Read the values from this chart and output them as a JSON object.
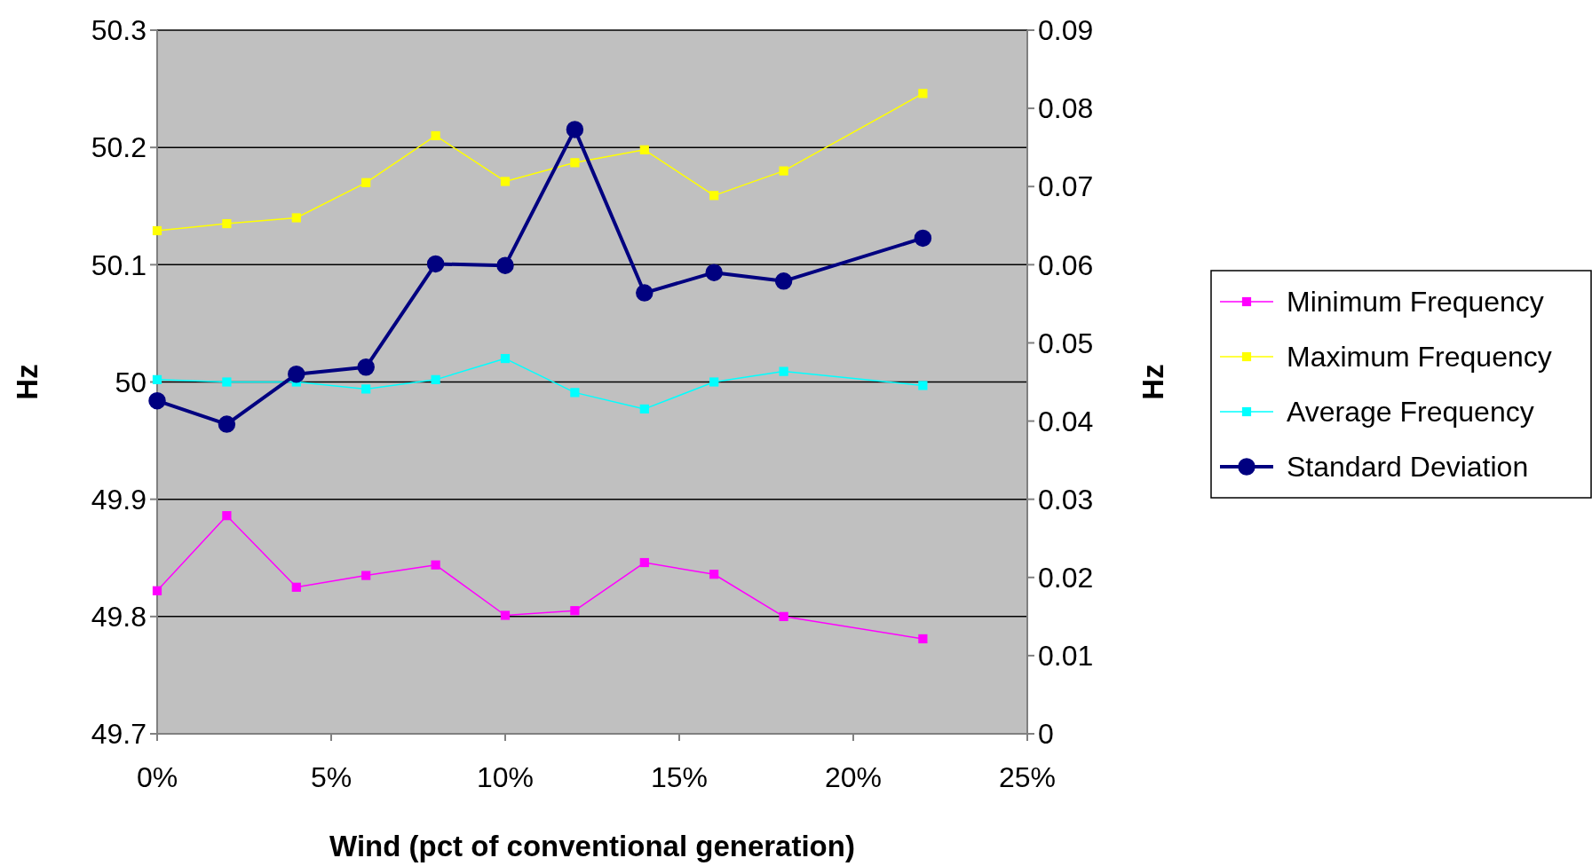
{
  "chart_data": {
    "type": "line",
    "xlabel": "Wind (pct of conventional generation)",
    "ylabel": "Hz",
    "y2label": "Hz",
    "x": [
      0,
      0.02,
      0.04,
      0.06,
      0.08,
      0.1,
      0.12,
      0.14,
      0.16,
      0.18,
      0.22
    ],
    "xlim": [
      0,
      0.25
    ],
    "xticks": [
      {
        "value": 0,
        "label": "0%"
      },
      {
        "value": 0.05,
        "label": "5%"
      },
      {
        "value": 0.1,
        "label": "10%"
      },
      {
        "value": 0.15,
        "label": "15%"
      },
      {
        "value": 0.2,
        "label": "20%"
      },
      {
        "value": 0.25,
        "label": "25%"
      }
    ],
    "ylim": [
      49.7,
      50.3
    ],
    "yticks": [
      49.7,
      49.8,
      49.9,
      50,
      50.1,
      50.2,
      50.3
    ],
    "y2lim": [
      0,
      0.09
    ],
    "y2ticks": [
      0,
      0.01,
      0.02,
      0.03,
      0.04,
      0.05,
      0.06,
      0.07,
      0.08,
      0.09
    ],
    "grid": "y",
    "legend": "right",
    "series": [
      {
        "name": "Minimum Frequency",
        "color": "#ff00ff",
        "marker": "square",
        "values": [
          49.822,
          49.886,
          49.825,
          49.835,
          49.844,
          49.801,
          49.805,
          49.846,
          49.836,
          49.8,
          49.781
        ]
      },
      {
        "name": "Maximum Frequency",
        "color": "#ffff00",
        "marker": "square",
        "values": [
          50.129,
          50.135,
          50.14,
          50.17,
          50.21,
          50.171,
          50.187,
          50.198,
          50.159,
          50.18,
          50.246
        ]
      },
      {
        "name": "Average Frequency",
        "color": "#00ffff",
        "marker": "square",
        "values": [
          50.002,
          50,
          50,
          49.994,
          50.002,
          50.02,
          49.991,
          49.977,
          50,
          50.009,
          49.997
        ]
      },
      {
        "name": "Standard Deviation",
        "color": "#000080",
        "marker": "circle",
        "axis": "y2",
        "values": [
          0.0426,
          0.0396,
          0.046,
          0.0469,
          0.0601,
          0.0599,
          0.0773,
          0.0564,
          0.059,
          0.0579,
          0.0634
        ]
      }
    ]
  }
}
